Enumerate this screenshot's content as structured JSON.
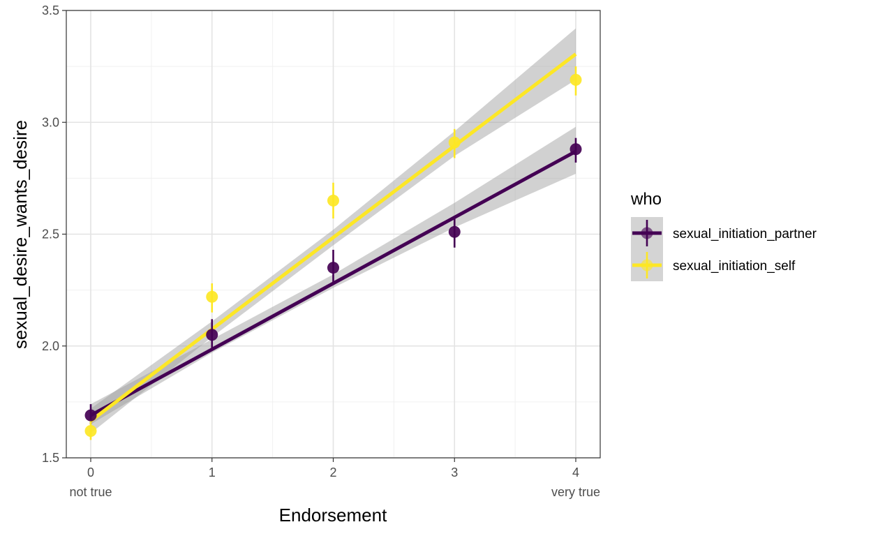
{
  "chart_data": {
    "type": "scatter",
    "title": "",
    "xlabel": "Endorsement",
    "ylabel": "sexual_desire_wants_desire",
    "xlim": [
      -0.2,
      4.2
    ],
    "ylim": [
      1.5,
      3.5
    ],
    "x_ticks": [
      {
        "value": 0,
        "label": "0",
        "sublabel": "not true"
      },
      {
        "value": 1,
        "label": "1",
        "sublabel": ""
      },
      {
        "value": 2,
        "label": "2",
        "sublabel": ""
      },
      {
        "value": 3,
        "label": "3",
        "sublabel": ""
      },
      {
        "value": 4,
        "label": "4",
        "sublabel": "very true"
      }
    ],
    "y_ticks": [
      {
        "value": 1.5,
        "label": "1.5"
      },
      {
        "value": 2.0,
        "label": "2.0"
      },
      {
        "value": 2.5,
        "label": "2.5"
      },
      {
        "value": 3.0,
        "label": "3.0"
      },
      {
        "value": 3.5,
        "label": "3.5"
      }
    ],
    "grid": true,
    "legend": {
      "title": "who",
      "position": "right"
    },
    "series": [
      {
        "name": "sexual_initiation_partner",
        "color": "#440154",
        "points": [
          {
            "x": 0,
            "y": 1.69,
            "lo": 1.65,
            "hi": 1.74
          },
          {
            "x": 1,
            "y": 2.05,
            "lo": 1.98,
            "hi": 2.12
          },
          {
            "x": 2,
            "y": 2.35,
            "lo": 2.28,
            "hi": 2.43
          },
          {
            "x": 3,
            "y": 2.51,
            "lo": 2.44,
            "hi": 2.58
          },
          {
            "x": 4,
            "y": 2.88,
            "lo": 2.82,
            "hi": 2.93
          }
        ],
        "fit": {
          "intercept": 1.69,
          "slope": 0.295,
          "ribbon_lo": [
            1.65,
            1.97,
            2.26,
            2.53,
            2.77
          ],
          "ribbon_hi": [
            1.74,
            2.03,
            2.32,
            2.64,
            2.98
          ]
        }
      },
      {
        "name": "sexual_initiation_self",
        "color": "#FDE725",
        "points": [
          {
            "x": 0,
            "y": 1.62,
            "lo": 1.58,
            "hi": 1.67
          },
          {
            "x": 1,
            "y": 2.22,
            "lo": 2.15,
            "hi": 2.28
          },
          {
            "x": 2,
            "y": 2.65,
            "lo": 2.57,
            "hi": 2.73
          },
          {
            "x": 3,
            "y": 2.91,
            "lo": 2.84,
            "hi": 2.97
          },
          {
            "x": 4,
            "y": 3.19,
            "lo": 3.12,
            "hi": 3.25
          }
        ],
        "fit": {
          "intercept": 1.665,
          "slope": 0.41,
          "ribbon_lo": [
            1.61,
            2.04,
            2.45,
            2.85,
            3.19
          ],
          "ribbon_hi": [
            1.72,
            2.11,
            2.52,
            2.96,
            3.42
          ]
        }
      }
    ]
  }
}
